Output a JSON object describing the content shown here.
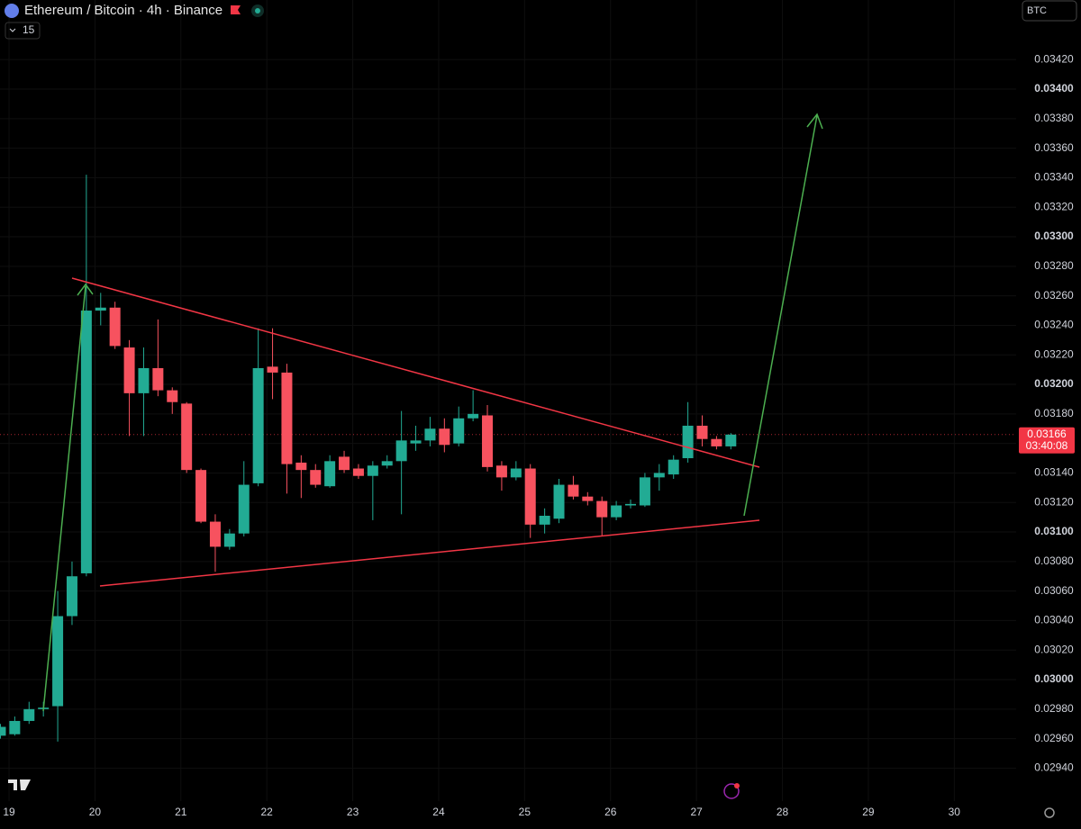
{
  "ui": {
    "currency_button": "BTC",
    "collapse_count": "15"
  },
  "chart_data": {
    "type": "candlestick",
    "title": "Ethereum / Bitcoin · 4h · Binance",
    "up_color": "#22ab94",
    "down_color": "#f7525f",
    "grid": true,
    "x": [
      18.9,
      19.0667,
      19.2333,
      19.4,
      19.5667,
      19.7333,
      19.9,
      20.0667,
      20.2333,
      20.4,
      20.5667,
      20.7333,
      20.9,
      21.0667,
      21.2333,
      21.4,
      21.5667,
      21.7333,
      21.9,
      22.0667,
      22.2333,
      22.4,
      22.5667,
      22.7333,
      22.9,
      23.0667,
      23.2333,
      23.4,
      23.5667,
      23.7333,
      23.9,
      24.0667,
      24.2333,
      24.4,
      24.5667,
      24.7333,
      24.9,
      25.0667,
      25.2333,
      25.4,
      25.5667,
      25.7333,
      25.9,
      26.0667,
      26.2333,
      26.4,
      26.5667,
      26.7333,
      26.9,
      27.0667,
      27.2333,
      27.4
    ],
    "open": [
      0.02962,
      0.02963,
      0.02972,
      0.0298,
      0.02982,
      0.03043,
      0.03072,
      0.0325,
      0.03252,
      0.03225,
      0.03194,
      0.03211,
      0.03196,
      0.03187,
      0.03142,
      0.03107,
      0.0309,
      0.03099,
      0.03133,
      0.03212,
      0.03208,
      0.03147,
      0.03142,
      0.03131,
      0.03151,
      0.03143,
      0.03138,
      0.03145,
      0.03148,
      0.0316,
      0.03162,
      0.0317,
      0.0316,
      0.03177,
      0.03179,
      0.03145,
      0.03137,
      0.03143,
      0.03105,
      0.03109,
      0.03132,
      0.03124,
      0.03121,
      0.0311,
      0.03118,
      0.03118,
      0.03137,
      0.03139,
      0.0315,
      0.03172,
      0.03163,
      0.03158
    ],
    "high": [
      0.0297,
      0.02975,
      0.02985,
      0.02985,
      0.0306,
      0.0308,
      0.03342,
      0.03262,
      0.03256,
      0.0323,
      0.03225,
      0.03244,
      0.03198,
      0.03188,
      0.03143,
      0.03112,
      0.03102,
      0.03148,
      0.03238,
      0.03238,
      0.03214,
      0.03152,
      0.03146,
      0.03152,
      0.03155,
      0.03146,
      0.03148,
      0.03152,
      0.03182,
      0.03172,
      0.03178,
      0.03177,
      0.03185,
      0.03196,
      0.03186,
      0.03148,
      0.03148,
      0.03146,
      0.03116,
      0.03136,
      0.03138,
      0.03127,
      0.03124,
      0.03121,
      0.03122,
      0.0314,
      0.03146,
      0.03152,
      0.03188,
      0.03179,
      0.03165,
      0.03167
    ],
    "low": [
      0.0296,
      0.02962,
      0.0297,
      0.02975,
      0.02958,
      0.03037,
      0.0307,
      0.0324,
      0.03224,
      0.03165,
      0.03165,
      0.03192,
      0.0318,
      0.0314,
      0.03106,
      0.03073,
      0.03088,
      0.03097,
      0.03131,
      0.0319,
      0.03126,
      0.03123,
      0.0313,
      0.0313,
      0.0314,
      0.03136,
      0.03108,
      0.03143,
      0.03112,
      0.03155,
      0.03158,
      0.03154,
      0.03158,
      0.03175,
      0.03141,
      0.03128,
      0.03135,
      0.03096,
      0.03099,
      0.03106,
      0.03122,
      0.03118,
      0.03097,
      0.03108,
      0.03116,
      0.03117,
      0.03128,
      0.03136,
      0.03147,
      0.03158,
      0.03156,
      0.03156
    ],
    "close": [
      0.02968,
      0.02972,
      0.0298,
      0.02981,
      0.03043,
      0.0307,
      0.0325,
      0.03252,
      0.03226,
      0.03194,
      0.03211,
      0.03196,
      0.03188,
      0.03142,
      0.03107,
      0.0309,
      0.03099,
      0.03132,
      0.03211,
      0.03208,
      0.03146,
      0.03142,
      0.03132,
      0.03148,
      0.03142,
      0.03138,
      0.03145,
      0.03148,
      0.03162,
      0.03162,
      0.0317,
      0.03159,
      0.03177,
      0.0318,
      0.03144,
      0.03137,
      0.03143,
      0.03105,
      0.03111,
      0.03132,
      0.03124,
      0.03121,
      0.0311,
      0.03118,
      0.03119,
      0.03137,
      0.0314,
      0.03149,
      0.03172,
      0.03163,
      0.03158,
      0.03166
    ],
    "xlim": [
      18.895,
      30.72
    ],
    "xticks": [
      19,
      20,
      21,
      22,
      23,
      24,
      25,
      26,
      27,
      28,
      29,
      30
    ],
    "ylim": [
      0.029177,
      0.034604
    ],
    "yticks": [
      {
        "value": 0.0294,
        "label": "0.02940"
      },
      {
        "value": 0.0296,
        "label": "0.02960"
      },
      {
        "value": 0.0298,
        "label": "0.02980"
      },
      {
        "value": 0.03,
        "label": "0.03000"
      },
      {
        "value": 0.0302,
        "label": "0.03020"
      },
      {
        "value": 0.0304,
        "label": "0.03040"
      },
      {
        "value": 0.0306,
        "label": "0.03060"
      },
      {
        "value": 0.0308,
        "label": "0.03080"
      },
      {
        "value": 0.031,
        "label": "0.03100"
      },
      {
        "value": 0.0312,
        "label": "0.03120"
      },
      {
        "value": 0.0314,
        "label": "0.03140"
      },
      {
        "value": 0.0316,
        "label": "0.03160"
      },
      {
        "value": 0.0318,
        "label": "0.03180"
      },
      {
        "value": 0.032,
        "label": "0.03200"
      },
      {
        "value": 0.0322,
        "label": "0.03220"
      },
      {
        "value": 0.0324,
        "label": "0.03240"
      },
      {
        "value": 0.0326,
        "label": "0.03260"
      },
      {
        "value": 0.0328,
        "label": "0.03280"
      },
      {
        "value": 0.033,
        "label": "0.03300"
      },
      {
        "value": 0.0332,
        "label": "0.03320"
      },
      {
        "value": 0.0334,
        "label": "0.03340"
      },
      {
        "value": 0.0336,
        "label": "0.03360"
      },
      {
        "value": 0.0338,
        "label": "0.03380"
      },
      {
        "value": 0.034,
        "label": "0.03400"
      },
      {
        "value": 0.0342,
        "label": "0.03420"
      }
    ],
    "last_price": {
      "value": 0.03166,
      "countdown": "03:40:08"
    }
  }
}
